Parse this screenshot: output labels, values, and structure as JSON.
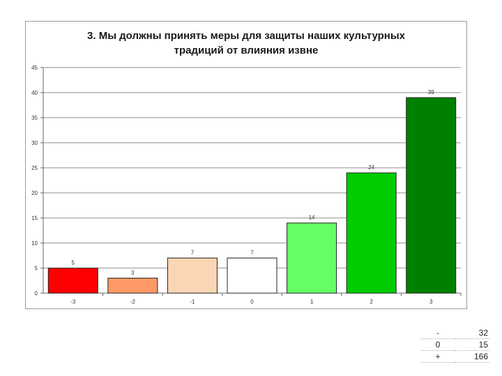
{
  "chart_data": {
    "type": "bar",
    "title_lines": [
      "3. Мы должны принять меры для защиты наших культурных",
      "традиций от влияния извне"
    ],
    "categories": [
      "-3",
      "-2",
      "-1",
      "0",
      "1",
      "2",
      "3"
    ],
    "values": [
      5,
      3,
      7,
      7,
      14,
      24,
      39
    ],
    "data_labels": [
      "5",
      "3",
      "7",
      "7",
      "14",
      "24",
      "39"
    ],
    "bar_colors": [
      "#ff0000",
      "#ff9966",
      "#fad6b4",
      "#ffffff",
      "#66ff66",
      "#00cc00",
      "#008000"
    ],
    "ylim": [
      0,
      45
    ],
    "yticks": [
      "0",
      "5",
      "10",
      "15",
      "20",
      "25",
      "30",
      "35",
      "40",
      "45"
    ],
    "grid": true,
    "xlabel": "",
    "ylabel": ""
  },
  "summary": [
    {
      "label": "-",
      "value": "32"
    },
    {
      "label": "0",
      "value": "15"
    },
    {
      "label": "+",
      "value": "166"
    }
  ]
}
